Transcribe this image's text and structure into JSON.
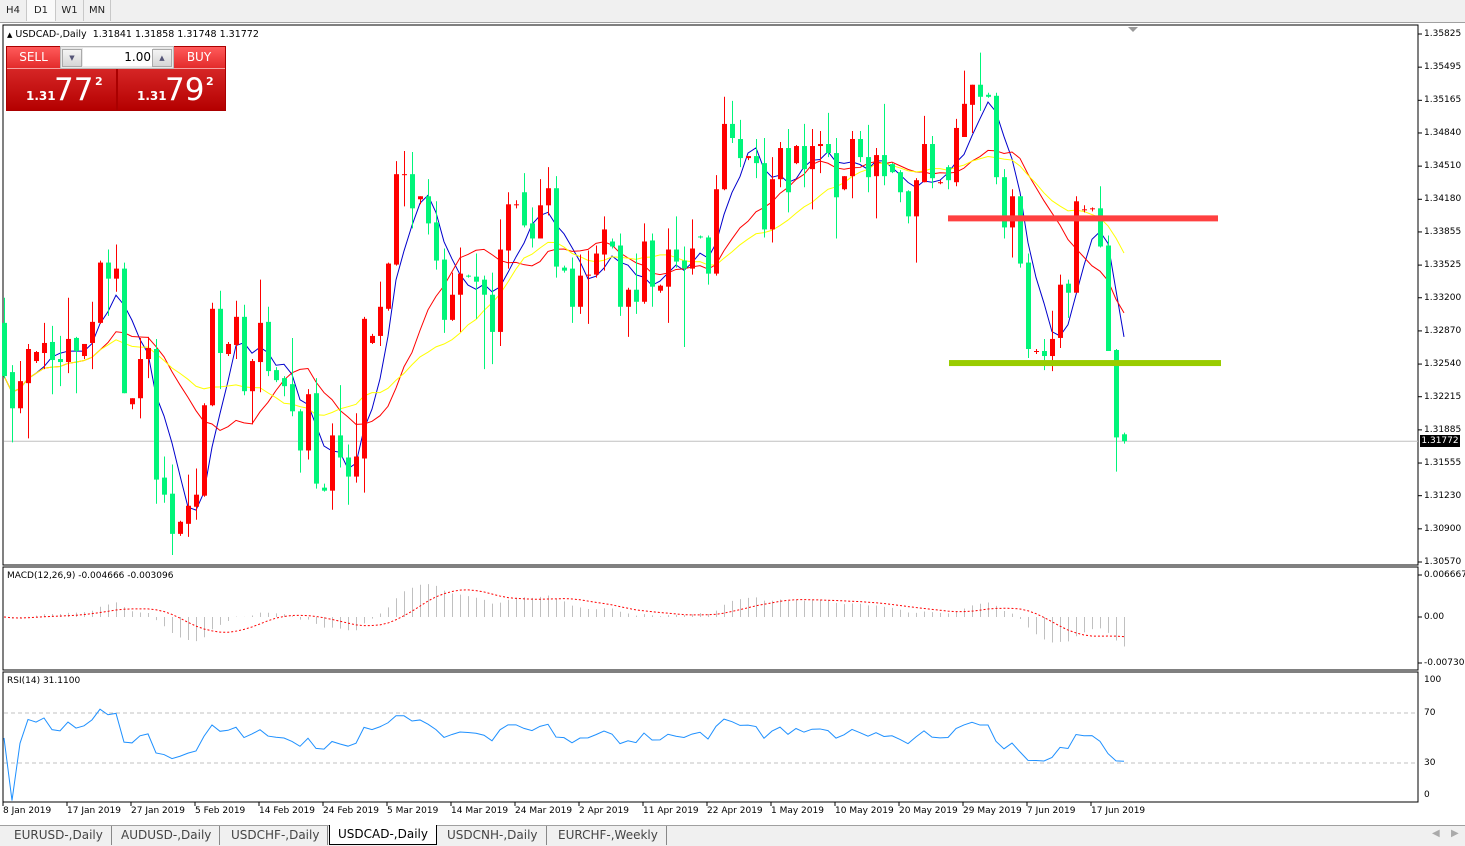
{
  "timeframes": [
    {
      "label": "H4"
    },
    {
      "label": "D1",
      "selected": true
    },
    {
      "label": "W1"
    },
    {
      "label": "MN"
    }
  ],
  "chart": {
    "title": "USDCAD-,Daily",
    "ohlc_readout": "1.31841 1.31858 1.31748 1.31772",
    "current_price": "1.31772",
    "collapse_icon": "triangle-up-icon"
  },
  "trade_panel": {
    "sell_label": "SELL",
    "buy_label": "BUY",
    "lot_value": "1.00",
    "sell_prefix": "1.31",
    "sell_big": "77",
    "sell_sup": "2",
    "buy_prefix": "1.31",
    "buy_big": "79",
    "buy_sup": "2"
  },
  "colors": {
    "bull": "#ff0000",
    "bear": "#00f57a",
    "ma_fast": "#0000cc",
    "ma_mid": "#ff0000",
    "ma_slow": "#ffff00",
    "resistance": "#ff4040",
    "support": "#99cc00",
    "macd_hist": "#c0c0c0",
    "macd_signal": "#ff0000",
    "rsi": "#1e90ff"
  },
  "chart_data": {
    "type": "candlestick",
    "symbol": "USDCAD-",
    "timeframe": "Daily",
    "price_axis": [
      "1.35825",
      "1.35495",
      "1.35165",
      "1.34840",
      "1.34510",
      "1.34180",
      "1.33855",
      "1.33525",
      "1.33200",
      "1.32870",
      "1.32540",
      "1.32215",
      "1.31885",
      "1.31555",
      "1.31230",
      "1.30900",
      "1.30570"
    ],
    "ylim": [
      1.3057,
      1.35825
    ],
    "date_labels": [
      "8 Jan 2019",
      "17 Jan 2019",
      "27 Jan 2019",
      "5 Feb 2019",
      "14 Feb 2019",
      "24 Feb 2019",
      "5 Mar 2019",
      "14 Mar 2019",
      "24 Mar 2019",
      "2 Apr 2019",
      "11 Apr 2019",
      "22 Apr 2019",
      "1 May 2019",
      "10 May 2019",
      "20 May 2019",
      "29 May 2019",
      "7 Jun 2019",
      "17 Jun 2019"
    ],
    "candles_ohlc": [
      [
        1.3295,
        1.332,
        1.324,
        1.3242
      ],
      [
        1.3246,
        1.3253,
        1.3176,
        1.321
      ],
      [
        1.321,
        1.3257,
        1.3205,
        1.3237
      ],
      [
        1.3235,
        1.3274,
        1.318,
        1.3269
      ],
      [
        1.3257,
        1.3267,
        1.3255,
        1.3266
      ],
      [
        1.3265,
        1.3295,
        1.3249,
        1.3275
      ],
      [
        1.3276,
        1.3292,
        1.3224,
        1.3258
      ],
      [
        1.3259,
        1.3282,
        1.3232,
        1.3256
      ],
      [
        1.3256,
        1.332,
        1.3245,
        1.3279
      ],
      [
        1.328,
        1.3281,
        1.3225,
        1.3267
      ],
      [
        1.3262,
        1.3274,
        1.3259,
        1.3274
      ],
      [
        1.3275,
        1.3316,
        1.3249,
        1.3296
      ],
      [
        1.3295,
        1.3357,
        1.3294,
        1.3355
      ],
      [
        1.3355,
        1.3368,
        1.3302,
        1.3339
      ],
      [
        1.3339,
        1.3373,
        1.3326,
        1.3349
      ],
      [
        1.3349,
        1.3355,
        1.3225,
        1.3225
      ],
      [
        1.3214,
        1.322,
        1.3209,
        1.322
      ],
      [
        1.322,
        1.328,
        1.32,
        1.3259
      ],
      [
        1.3259,
        1.3281,
        1.324,
        1.327
      ],
      [
        1.3269,
        1.3279,
        1.3115,
        1.3139
      ],
      [
        1.3141,
        1.3162,
        1.3116,
        1.3124
      ],
      [
        1.3125,
        1.3154,
        1.3064,
        1.3085
      ],
      [
        1.3085,
        1.3098,
        1.3083,
        1.3097
      ],
      [
        1.3095,
        1.3144,
        1.3082,
        1.3113
      ],
      [
        1.3112,
        1.315,
        1.3099,
        1.3124
      ],
      [
        1.3123,
        1.3215,
        1.3122,
        1.3213
      ],
      [
        1.3213,
        1.3315,
        1.3212,
        1.3309
      ],
      [
        1.3309,
        1.3327,
        1.3229,
        1.3265
      ],
      [
        1.3264,
        1.3276,
        1.3262,
        1.3274
      ],
      [
        1.3273,
        1.3317,
        1.3259,
        1.3301
      ],
      [
        1.3301,
        1.3313,
        1.3223,
        1.3227
      ],
      [
        1.3227,
        1.3259,
        1.3194,
        1.3257
      ],
      [
        1.3256,
        1.3338,
        1.3226,
        1.3295
      ],
      [
        1.3296,
        1.3311,
        1.3242,
        1.3247
      ],
      [
        1.3248,
        1.3251,
        1.3236,
        1.3238
      ],
      [
        1.324,
        1.3242,
        1.3222,
        1.3232
      ],
      [
        1.3234,
        1.328,
        1.3202,
        1.3207
      ],
      [
        1.3207,
        1.3209,
        1.3146,
        1.3168
      ],
      [
        1.3168,
        1.3229,
        1.3159,
        1.3224
      ],
      [
        1.3225,
        1.324,
        1.313,
        1.3135
      ],
      [
        1.3131,
        1.3135,
        1.3127,
        1.3128
      ],
      [
        1.3128,
        1.3195,
        1.3109,
        1.3183
      ],
      [
        1.3183,
        1.3233,
        1.3151,
        1.3161
      ],
      [
        1.3161,
        1.3174,
        1.3114,
        1.3142
      ],
      [
        1.3142,
        1.3205,
        1.3136,
        1.3162
      ],
      [
        1.316,
        1.3301,
        1.3126,
        1.3299
      ],
      [
        1.3275,
        1.3284,
        1.3274,
        1.3282
      ],
      [
        1.3282,
        1.3336,
        1.3272,
        1.3311
      ],
      [
        1.3309,
        1.3355,
        1.3307,
        1.3354
      ],
      [
        1.3353,
        1.3456,
        1.3352,
        1.3443
      ],
      [
        1.3442,
        1.3466,
        1.3411,
        1.3443
      ],
      [
        1.3443,
        1.3465,
        1.3389,
        1.3409
      ],
      [
        1.3418,
        1.3421,
        1.3413,
        1.3421
      ],
      [
        1.3421,
        1.3438,
        1.3383,
        1.3394
      ],
      [
        1.3395,
        1.3416,
        1.3348,
        1.3357
      ],
      [
        1.3358,
        1.3369,
        1.3285,
        1.3298
      ],
      [
        1.3298,
        1.3345,
        1.3297,
        1.3323
      ],
      [
        1.3323,
        1.337,
        1.3286,
        1.3344
      ],
      [
        1.3342,
        1.3343,
        1.334,
        1.3341
      ],
      [
        1.3341,
        1.3364,
        1.3299,
        1.3336
      ],
      [
        1.3338,
        1.3342,
        1.3249,
        1.3323
      ],
      [
        1.3323,
        1.3345,
        1.3254,
        1.3286
      ],
      [
        1.3286,
        1.3398,
        1.3272,
        1.3368
      ],
      [
        1.3367,
        1.3425,
        1.3349,
        1.3413
      ],
      [
        1.3412,
        1.3417,
        1.3409,
        1.3413
      ],
      [
        1.3425,
        1.3444,
        1.339,
        1.3392
      ],
      [
        1.3394,
        1.341,
        1.337,
        1.3379
      ],
      [
        1.3379,
        1.3438,
        1.3379,
        1.3412
      ],
      [
        1.3412,
        1.345,
        1.3402,
        1.3429
      ],
      [
        1.3429,
        1.3441,
        1.334,
        1.3351
      ],
      [
        1.335,
        1.3352,
        1.3345,
        1.3347
      ],
      [
        1.3349,
        1.336,
        1.3295,
        1.3311
      ],
      [
        1.3311,
        1.3363,
        1.3304,
        1.3342
      ],
      [
        1.3342,
        1.3367,
        1.3294,
        1.3343
      ],
      [
        1.3343,
        1.3372,
        1.334,
        1.3364
      ],
      [
        1.3363,
        1.3401,
        1.3347,
        1.3388
      ],
      [
        1.3376,
        1.3379,
        1.3369,
        1.3371
      ],
      [
        1.3372,
        1.3384,
        1.3302,
        1.3311
      ],
      [
        1.3311,
        1.333,
        1.3281,
        1.3328
      ],
      [
        1.3328,
        1.3364,
        1.3304,
        1.3316
      ],
      [
        1.3316,
        1.3394,
        1.3314,
        1.3376
      ],
      [
        1.3377,
        1.3384,
        1.3311,
        1.3331
      ],
      [
        1.3327,
        1.3333,
        1.3325,
        1.3332
      ],
      [
        1.3331,
        1.3389,
        1.3295,
        1.3368
      ],
      [
        1.3368,
        1.3401,
        1.335,
        1.3356
      ],
      [
        1.3357,
        1.3371,
        1.3271,
        1.3349
      ],
      [
        1.3349,
        1.3398,
        1.3343,
        1.3369
      ],
      [
        1.3381,
        1.3382,
        1.3379,
        1.338
      ],
      [
        1.338,
        1.3382,
        1.3333,
        1.3344
      ],
      [
        1.3344,
        1.3442,
        1.3342,
        1.3428
      ],
      [
        1.3428,
        1.352,
        1.3427,
        1.3493
      ],
      [
        1.3493,
        1.3516,
        1.3474,
        1.3479
      ],
      [
        1.3478,
        1.3497,
        1.345,
        1.3459
      ],
      [
        1.3459,
        1.3461,
        1.3457,
        1.3461
      ],
      [
        1.3461,
        1.3478,
        1.3439,
        1.3454
      ],
      [
        1.3454,
        1.3479,
        1.338,
        1.3388
      ],
      [
        1.3388,
        1.346,
        1.3375,
        1.3438
      ],
      [
        1.3438,
        1.3475,
        1.343,
        1.3469
      ],
      [
        1.3469,
        1.3488,
        1.3405,
        1.3425
      ],
      [
        1.3454,
        1.3472,
        1.3453,
        1.3471
      ],
      [
        1.3471,
        1.3493,
        1.343,
        1.3448
      ],
      [
        1.3448,
        1.3488,
        1.3408,
        1.3471
      ],
      [
        1.3471,
        1.3486,
        1.3444,
        1.3473
      ],
      [
        1.3473,
        1.3504,
        1.346,
        1.3464
      ],
      [
        1.3464,
        1.3479,
        1.3379,
        1.342
      ],
      [
        1.3428,
        1.3441,
        1.3427,
        1.3441
      ],
      [
        1.3441,
        1.3486,
        1.3419,
        1.3478
      ],
      [
        1.3478,
        1.3486,
        1.3455,
        1.346
      ],
      [
        1.346,
        1.3492,
        1.3425,
        1.344
      ],
      [
        1.3441,
        1.3469,
        1.3399,
        1.3462
      ],
      [
        1.3462,
        1.3513,
        1.3432,
        1.3441
      ],
      [
        1.3453,
        1.3454,
        1.3444,
        1.3445
      ],
      [
        1.3445,
        1.3447,
        1.3415,
        1.3425
      ],
      [
        1.3426,
        1.3427,
        1.3394,
        1.3401
      ],
      [
        1.3401,
        1.3439,
        1.3355,
        1.3437
      ],
      [
        1.3435,
        1.3501,
        1.3435,
        1.3473
      ],
      [
        1.3473,
        1.3481,
        1.3429,
        1.3439
      ],
      [
        1.3434,
        1.3437,
        1.3433,
        1.3435
      ],
      [
        1.345,
        1.3452,
        1.3428,
        1.3437
      ],
      [
        1.3435,
        1.3498,
        1.3431,
        1.3489
      ],
      [
        1.348,
        1.3546,
        1.348,
        1.3513
      ],
      [
        1.3512,
        1.3532,
        1.3484,
        1.3532
      ],
      [
        1.3532,
        1.3564,
        1.3506,
        1.352
      ],
      [
        1.3522,
        1.3524,
        1.3519,
        1.352
      ],
      [
        1.3521,
        1.3524,
        1.3433,
        1.344
      ],
      [
        1.344,
        1.3448,
        1.3379,
        1.339
      ],
      [
        1.339,
        1.3428,
        1.336,
        1.3421
      ],
      [
        1.3421,
        1.3421,
        1.335,
        1.3354
      ],
      [
        1.3355,
        1.3364,
        1.326,
        1.3269
      ],
      [
        1.3266,
        1.3269,
        1.3264,
        1.3267
      ],
      [
        1.3267,
        1.3279,
        1.3248,
        1.3262
      ],
      [
        1.3262,
        1.3307,
        1.3247,
        1.3279
      ],
      [
        1.328,
        1.3343,
        1.327,
        1.3333
      ],
      [
        1.3334,
        1.3338,
        1.33,
        1.3325
      ],
      [
        1.3325,
        1.3421,
        1.3325,
        1.3416
      ],
      [
        1.3407,
        1.3412,
        1.3405,
        1.3408
      ],
      [
        1.3408,
        1.341,
        1.3406,
        1.3409
      ],
      [
        1.3409,
        1.3431,
        1.337,
        1.3371
      ],
      [
        1.3372,
        1.3382,
        1.3267,
        1.3267
      ],
      [
        1.3268,
        1.3269,
        1.3147,
        1.3181
      ],
      [
        1.31841,
        1.31858,
        1.31748,
        1.31772
      ]
    ],
    "horizontal_lines": [
      {
        "price": 1.3399,
        "color": "#ff4040"
      },
      {
        "price": 1.3255,
        "color": "#99cc00"
      }
    ],
    "moving_averages": [
      {
        "color": "#0000cc"
      },
      {
        "color": "#ff0000"
      },
      {
        "color": "#ffff00"
      }
    ],
    "macd": {
      "label": "MACD(12,26,9) -0.004666 -0.003096",
      "axis": [
        "0.006667",
        "0.00",
        "-0.007308"
      ],
      "ylim": [
        -0.007308,
        0.006667
      ]
    },
    "rsi": {
      "label": "RSI(14) 31.1100",
      "axis": [
        "100",
        "70",
        "30",
        "0"
      ],
      "levels": [
        70,
        30
      ],
      "ylim": [
        0,
        100
      ]
    }
  },
  "bottom_tabs": [
    {
      "label": "EURUSD-,Daily"
    },
    {
      "label": "AUDUSD-,Daily"
    },
    {
      "label": "USDCHF-,Daily"
    },
    {
      "label": "USDCAD-,Daily",
      "selected": true
    },
    {
      "label": "USDCNH-,Daily"
    },
    {
      "label": "EURCHF-,Weekly"
    }
  ],
  "scroll": {
    "left_icon": "arrow-left-icon",
    "right_icon": "arrow-right-icon"
  }
}
